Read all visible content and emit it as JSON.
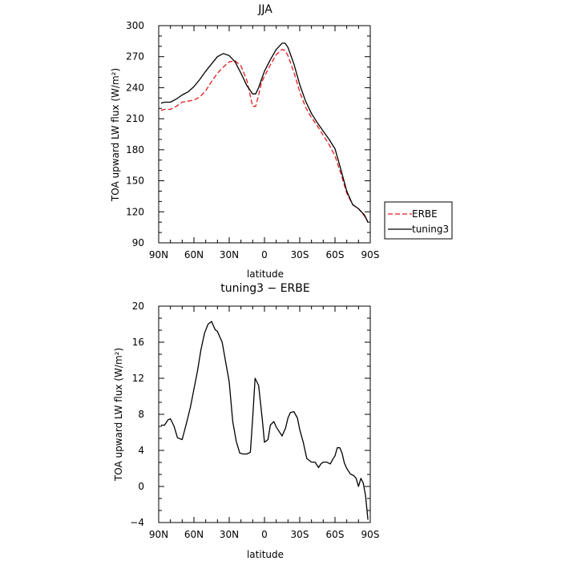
{
  "chart_data": [
    {
      "type": "line",
      "title": "JJA",
      "xlabel": "latitude",
      "ylabel": "TOA upward LW flux (W/m²)",
      "xlim": [
        90,
        -90
      ],
      "ylim": [
        90,
        300
      ],
      "xticks": [
        90,
        60,
        30,
        0,
        -30,
        -60,
        -90
      ],
      "xticklabels": [
        "90N",
        "60N",
        "30N",
        "0",
        "30S",
        "60S",
        "90S"
      ],
      "yticks": [
        90,
        120,
        150,
        180,
        210,
        240,
        270,
        300
      ],
      "yticklabels": [
        "90",
        "120",
        "150",
        "180",
        "210",
        "240",
        "270",
        "300"
      ],
      "legend_position": "right-outside",
      "series": [
        {
          "name": "ERBE",
          "color": "#e8191c",
          "style": "dashed",
          "x": [
            88,
            85,
            80,
            75,
            70,
            65,
            60,
            55,
            50,
            45,
            40,
            35,
            30,
            25,
            20,
            15,
            10,
            7.5,
            5,
            2.5,
            0,
            -5,
            -10,
            -15,
            -17.5,
            -20,
            -25,
            -30,
            -35,
            -40,
            -45,
            -50,
            -55,
            -60,
            -65,
            -70,
            -75,
            -80,
            -85,
            -88
          ],
          "y": [
            218,
            219,
            219,
            222,
            226,
            227,
            228,
            231,
            237,
            246,
            254,
            260,
            265,
            266,
            261,
            247,
            222,
            222,
            233,
            245,
            251,
            262,
            272,
            277,
            276,
            271,
            255,
            236,
            221,
            211,
            203,
            194,
            185,
            174,
            157,
            138,
            127,
            123,
            116,
            110
          ]
        },
        {
          "name": "tuning3",
          "color": "#000000",
          "style": "solid",
          "x": [
            88,
            85,
            80,
            75,
            70,
            65,
            60,
            55,
            50,
            45,
            40,
            35,
            30,
            25,
            20,
            15,
            10,
            7.5,
            5,
            2.5,
            0,
            -5,
            -10,
            -15,
            -17.5,
            -20,
            -25,
            -30,
            -35,
            -40,
            -45,
            -50,
            -55,
            -60,
            -65,
            -70,
            -75,
            -80,
            -85,
            -88
          ],
          "y": [
            225,
            226,
            226,
            229,
            233,
            236,
            241,
            248,
            256,
            263,
            270,
            273,
            271,
            265,
            254,
            242,
            234,
            234,
            240,
            248,
            256,
            267,
            277,
            283,
            283,
            279,
            263,
            243,
            227,
            215,
            206,
            198,
            190,
            181,
            161,
            140,
            127,
            123,
            117,
            110
          ]
        }
      ]
    },
    {
      "type": "line",
      "title": "tuning3 − ERBE",
      "xlabel": "latitude",
      "ylabel": "TOA upward LW flux (W/m²)",
      "xlim": [
        90,
        -90
      ],
      "ylim": [
        -4,
        20
      ],
      "xticks": [
        90,
        60,
        30,
        0,
        -30,
        -60,
        -90
      ],
      "xticklabels": [
        "90N",
        "60N",
        "30N",
        "0",
        "30S",
        "60S",
        "90S"
      ],
      "yticks": [
        -4,
        0,
        4,
        8,
        12,
        16,
        20
      ],
      "yticklabels": [
        "−4",
        "0",
        "4",
        "8",
        "12",
        "16",
        "20"
      ],
      "series": [
        {
          "name": "",
          "color": "#000000",
          "style": "solid",
          "x": [
            88,
            85,
            82,
            80,
            77,
            74,
            70,
            66,
            63,
            60,
            57,
            54,
            51,
            48,
            45,
            42,
            40,
            36,
            33,
            30,
            27,
            24,
            21,
            18,
            15,
            12,
            10,
            8,
            5,
            2,
            0,
            -3,
            -5,
            -8,
            -10,
            -12,
            -15,
            -18,
            -20,
            -22,
            -25,
            -28,
            -30,
            -33,
            -36,
            -40,
            -43,
            -46,
            -48,
            -50,
            -53,
            -56,
            -58,
            -60,
            -62,
            -64,
            -66,
            -68,
            -70,
            -73,
            -76,
            -78,
            -80,
            -82,
            -84,
            -86,
            -88
          ],
          "y": [
            6.8,
            6.8,
            7.4,
            7.5,
            6.7,
            5.4,
            5.2,
            7.2,
            8.8,
            10.8,
            12.8,
            15.2,
            17.0,
            18.0,
            18.3,
            17.4,
            17.2,
            16.0,
            13.8,
            11.6,
            7.2,
            5.0,
            3.7,
            3.6,
            3.6,
            3.8,
            7.6,
            12.0,
            11.2,
            7.6,
            4.9,
            5.2,
            6.8,
            7.2,
            6.6,
            6.2,
            5.6,
            6.5,
            7.6,
            8.2,
            8.3,
            7.6,
            6.3,
            4.9,
            3.1,
            2.7,
            2.7,
            2.1,
            2.5,
            2.7,
            2.7,
            2.5,
            3.0,
            3.4,
            4.3,
            4.3,
            3.7,
            2.6,
            2.0,
            1.4,
            1.2,
            0.9,
            0.0,
            0.9,
            0.4,
            -1.0,
            -3.7
          ]
        }
      ]
    }
  ]
}
